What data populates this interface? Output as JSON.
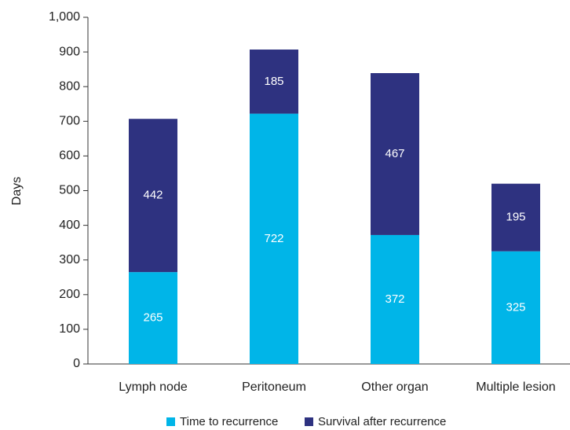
{
  "chart_data": {
    "type": "stacked_bar",
    "y_label": "Days",
    "categories": [
      "Lymph node",
      "Peritoneum",
      "Other organ",
      "Multiple lesion"
    ],
    "series": [
      {
        "name": "Time to recurrence",
        "color": "#00b5e8",
        "values": [
          265,
          722,
          372,
          325
        ]
      },
      {
        "name": "Survival after recurrence",
        "color": "#2e3280",
        "values": [
          442,
          185,
          467,
          195
        ]
      }
    ],
    "ylim": [
      0,
      1000
    ],
    "yticks": [
      0,
      100,
      200,
      300,
      400,
      500,
      600,
      700,
      800,
      900,
      {
        "value": 1000,
        "label": "1,000"
      }
    ],
    "legend": "bottom"
  }
}
